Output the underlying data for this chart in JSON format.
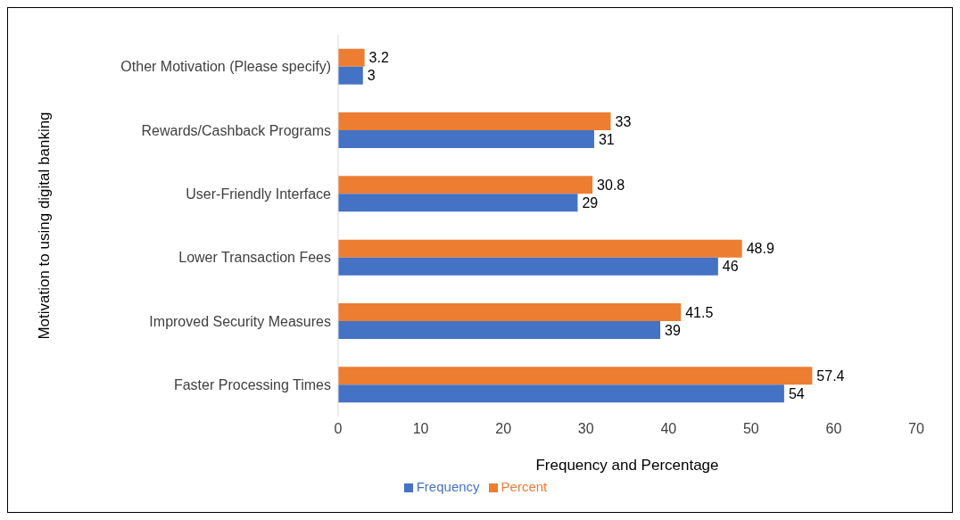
{
  "chart_data": {
    "type": "bar",
    "orientation": "horizontal",
    "xlabel": "Frequency and Percentage",
    "ylabel": "Motivation to using digital banking",
    "categories": [
      "Other Motivation (Please specify)",
      "Rewards/Cashback Programs",
      "User-Friendly Interface",
      "Lower Transaction Fees",
      "Improved Security Measures",
      "Faster Processing Times"
    ],
    "series": [
      {
        "name": "Percent",
        "color": "#ed7d31",
        "values": [
          3.2,
          33,
          30.8,
          48.9,
          41.5,
          57.4
        ]
      },
      {
        "name": "Frequency",
        "color": "#4472c4",
        "values": [
          3,
          31,
          29,
          46,
          39,
          54
        ]
      }
    ],
    "xlim": [
      0,
      70
    ],
    "xticks": [
      0,
      10,
      20,
      30,
      40,
      50,
      60,
      70
    ],
    "data_labels": true,
    "legend": "bottom",
    "grid": false
  }
}
